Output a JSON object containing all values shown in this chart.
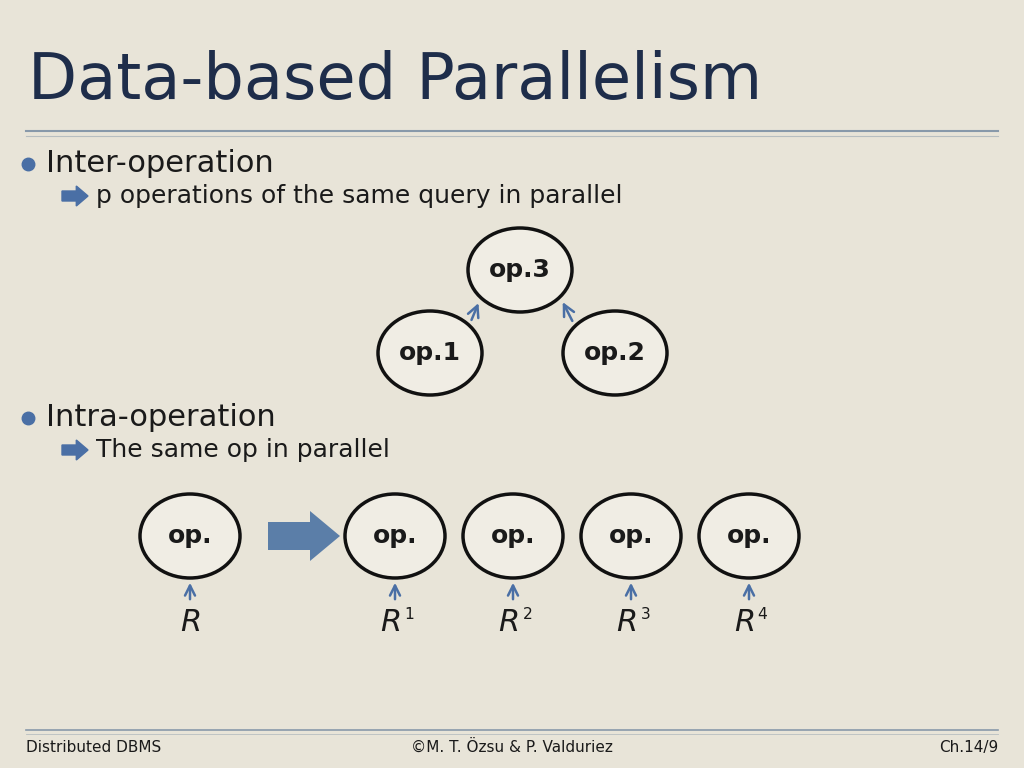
{
  "title": "Data-based Parallelism",
  "bg_color": "#e8e4d8",
  "title_color": "#1e2d4a",
  "text_color": "#1a1a1a",
  "bullet_color": "#4a6fa5",
  "line_color": "#8899aa",
  "arrow_color": "#4a6fa5",
  "ellipse_fill": "#f0ede4",
  "ellipse_edge": "#111111",
  "footer_left": "Distributed DBMS",
  "footer_center": "©M. T. Özsu & P. Valduriez",
  "footer_right": "Ch.14/9",
  "bullet1": "Inter-operation",
  "bullet2": "Intra-operation",
  "sub1": "p operations of the same query in parallel",
  "sub2": "The same op in parallel"
}
